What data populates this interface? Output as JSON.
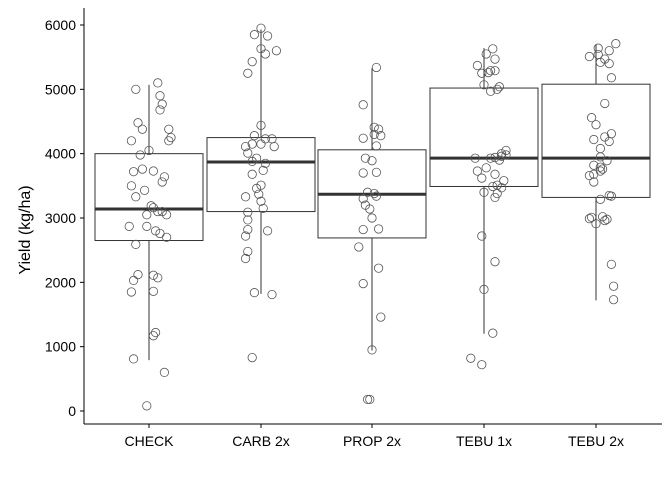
{
  "chart_data": {
    "type": "boxplot",
    "ylabel": "Yield (kg/ha)",
    "xlabel": "",
    "ylim": [
      -200,
      6200
    ],
    "yticks": [
      0,
      1000,
      2000,
      3000,
      4000,
      5000,
      6000
    ],
    "ytick_labels": [
      "0",
      "1000",
      "2000",
      "3000",
      "4000",
      "5000",
      "6000"
    ],
    "grid": false,
    "legend": "none",
    "colors": {
      "box_line": "#333333",
      "median": "#333333",
      "point_stroke": "#555555",
      "axis": "#000000"
    },
    "categories": [
      "CHECK",
      "CARB 2x",
      "PROP 2x",
      "TEBU 1x",
      "TEBU 2x"
    ],
    "boxes": [
      {
        "q1": 2650,
        "median": 3140,
        "q3": 4000,
        "whisker_low": 790,
        "whisker_high": 5070
      },
      {
        "q1": 3100,
        "median": 3870,
        "q3": 4250,
        "whisker_low": 1820,
        "whisker_high": 5930
      },
      {
        "q1": 2690,
        "median": 3370,
        "q3": 4060,
        "whisker_low": 940,
        "whisker_high": 5330
      },
      {
        "q1": 3490,
        "median": 3930,
        "q3": 5020,
        "whisker_low": 1200,
        "whisker_high": 5640
      },
      {
        "q1": 3320,
        "median": 3930,
        "q3": 5080,
        "whisker_low": 1720,
        "whisker_high": 5700
      }
    ],
    "points": [
      [
        {
          "x": -0.12,
          "y": 5000
        },
        {
          "x": 0.08,
          "y": 5100
        },
        {
          "x": 0.1,
          "y": 4900
        },
        {
          "x": 0.12,
          "y": 4770
        },
        {
          "x": 0.1,
          "y": 4680
        },
        {
          "x": -0.1,
          "y": 4480
        },
        {
          "x": -0.06,
          "y": 4380
        },
        {
          "x": 0.18,
          "y": 4380
        },
        {
          "x": 0.2,
          "y": 4250
        },
        {
          "x": 0.18,
          "y": 4200
        },
        {
          "x": -0.16,
          "y": 4200
        },
        {
          "x": 0.0,
          "y": 4050
        },
        {
          "x": -0.08,
          "y": 3980
        },
        {
          "x": -0.06,
          "y": 3760
        },
        {
          "x": 0.04,
          "y": 3730
        },
        {
          "x": -0.14,
          "y": 3720
        },
        {
          "x": 0.14,
          "y": 3640
        },
        {
          "x": 0.12,
          "y": 3560
        },
        {
          "x": -0.16,
          "y": 3500
        },
        {
          "x": -0.04,
          "y": 3430
        },
        {
          "x": -0.12,
          "y": 3330
        },
        {
          "x": 0.02,
          "y": 3190
        },
        {
          "x": 0.04,
          "y": 3160
        },
        {
          "x": 0.08,
          "y": 3100
        },
        {
          "x": 0.12,
          "y": 3100
        },
        {
          "x": -0.02,
          "y": 3050
        },
        {
          "x": 0.16,
          "y": 3050
        },
        {
          "x": -0.18,
          "y": 2870
        },
        {
          "x": -0.02,
          "y": 2870
        },
        {
          "x": 0.06,
          "y": 2800
        },
        {
          "x": 0.1,
          "y": 2760
        },
        {
          "x": 0.16,
          "y": 2700
        },
        {
          "x": -0.12,
          "y": 2590
        },
        {
          "x": -0.1,
          "y": 2120
        },
        {
          "x": 0.04,
          "y": 2110
        },
        {
          "x": 0.08,
          "y": 2070
        },
        {
          "x": -0.14,
          "y": 2030
        },
        {
          "x": 0.04,
          "y": 1860
        },
        {
          "x": -0.16,
          "y": 1850
        },
        {
          "x": 0.06,
          "y": 1220
        },
        {
          "x": 0.04,
          "y": 1170
        },
        {
          "x": -0.14,
          "y": 810
        },
        {
          "x": 0.14,
          "y": 600
        },
        {
          "x": -0.02,
          "y": 80
        }
      ],
      [
        {
          "x": 0.0,
          "y": 5950
        },
        {
          "x": -0.06,
          "y": 5850
        },
        {
          "x": 0.06,
          "y": 5830
        },
        {
          "x": 0.0,
          "y": 5630
        },
        {
          "x": 0.14,
          "y": 5600
        },
        {
          "x": 0.04,
          "y": 5550
        },
        {
          "x": -0.08,
          "y": 5430
        },
        {
          "x": -0.12,
          "y": 5250
        },
        {
          "x": 0.0,
          "y": 4440
        },
        {
          "x": -0.06,
          "y": 4280
        },
        {
          "x": 0.04,
          "y": 4230
        },
        {
          "x": 0.1,
          "y": 4230
        },
        {
          "x": -0.08,
          "y": 4150
        },
        {
          "x": 0.0,
          "y": 4150
        },
        {
          "x": 0.12,
          "y": 4110
        },
        {
          "x": -0.14,
          "y": 4110
        },
        {
          "x": -0.12,
          "y": 4010
        },
        {
          "x": -0.04,
          "y": 3930
        },
        {
          "x": -0.08,
          "y": 3880
        },
        {
          "x": 0.04,
          "y": 3850
        },
        {
          "x": 0.02,
          "y": 3740
        },
        {
          "x": -0.08,
          "y": 3680
        },
        {
          "x": 0.0,
          "y": 3510
        },
        {
          "x": -0.04,
          "y": 3460
        },
        {
          "x": -0.02,
          "y": 3370
        },
        {
          "x": -0.14,
          "y": 3330
        },
        {
          "x": 0.0,
          "y": 3260
        },
        {
          "x": 0.02,
          "y": 3150
        },
        {
          "x": -0.12,
          "y": 3090
        },
        {
          "x": -0.12,
          "y": 2970
        },
        {
          "x": -0.12,
          "y": 2820
        },
        {
          "x": 0.06,
          "y": 2800
        },
        {
          "x": -0.14,
          "y": 2720
        },
        {
          "x": -0.12,
          "y": 2480
        },
        {
          "x": -0.14,
          "y": 2370
        },
        {
          "x": -0.06,
          "y": 1840
        },
        {
          "x": 0.1,
          "y": 1810
        },
        {
          "x": -0.08,
          "y": 830
        }
      ],
      [
        {
          "x": 0.04,
          "y": 5340
        },
        {
          "x": -0.08,
          "y": 4760
        },
        {
          "x": 0.02,
          "y": 4410
        },
        {
          "x": 0.06,
          "y": 4380
        },
        {
          "x": 0.02,
          "y": 4300
        },
        {
          "x": 0.08,
          "y": 4280
        },
        {
          "x": -0.08,
          "y": 4240
        },
        {
          "x": 0.04,
          "y": 4120
        },
        {
          "x": -0.06,
          "y": 3930
        },
        {
          "x": 0.0,
          "y": 3890
        },
        {
          "x": 0.04,
          "y": 3710
        },
        {
          "x": -0.08,
          "y": 3700
        },
        {
          "x": -0.04,
          "y": 3400
        },
        {
          "x": 0.02,
          "y": 3380
        },
        {
          "x": 0.04,
          "y": 3340
        },
        {
          "x": -0.08,
          "y": 3300
        },
        {
          "x": -0.06,
          "y": 3200
        },
        {
          "x": -0.02,
          "y": 3140
        },
        {
          "x": 0.0,
          "y": 3000
        },
        {
          "x": -0.08,
          "y": 2820
        },
        {
          "x": 0.06,
          "y": 2830
        },
        {
          "x": -0.12,
          "y": 2550
        },
        {
          "x": 0.06,
          "y": 2220
        },
        {
          "x": -0.08,
          "y": 1980
        },
        {
          "x": 0.08,
          "y": 1460
        },
        {
          "x": 0.0,
          "y": 950
        },
        {
          "x": -0.04,
          "y": 180
        },
        {
          "x": -0.02,
          "y": 180
        }
      ],
      [
        {
          "x": 0.08,
          "y": 5630
        },
        {
          "x": 0.02,
          "y": 5550
        },
        {
          "x": 0.1,
          "y": 5470
        },
        {
          "x": -0.06,
          "y": 5370
        },
        {
          "x": 0.06,
          "y": 5290
        },
        {
          "x": 0.1,
          "y": 5290
        },
        {
          "x": 0.04,
          "y": 5260
        },
        {
          "x": -0.02,
          "y": 5250
        },
        {
          "x": 0.0,
          "y": 5070
        },
        {
          "x": 0.14,
          "y": 5040
        },
        {
          "x": 0.12,
          "y": 5000
        },
        {
          "x": 0.06,
          "y": 4970
        },
        {
          "x": 0.2,
          "y": 4050
        },
        {
          "x": 0.16,
          "y": 4000
        },
        {
          "x": 0.2,
          "y": 3980
        },
        {
          "x": 0.16,
          "y": 3960
        },
        {
          "x": 0.1,
          "y": 3940
        },
        {
          "x": 0.06,
          "y": 3930
        },
        {
          "x": -0.08,
          "y": 3930
        },
        {
          "x": 0.14,
          "y": 3900
        },
        {
          "x": 0.02,
          "y": 3780
        },
        {
          "x": -0.06,
          "y": 3730
        },
        {
          "x": 0.1,
          "y": 3680
        },
        {
          "x": -0.02,
          "y": 3620
        },
        {
          "x": 0.18,
          "y": 3580
        },
        {
          "x": 0.12,
          "y": 3510
        },
        {
          "x": 0.08,
          "y": 3490
        },
        {
          "x": 0.16,
          "y": 3470
        },
        {
          "x": 0.0,
          "y": 3400
        },
        {
          "x": 0.12,
          "y": 3380
        },
        {
          "x": 0.1,
          "y": 3320
        },
        {
          "x": -0.02,
          "y": 2720
        },
        {
          "x": 0.1,
          "y": 2320
        },
        {
          "x": 0.0,
          "y": 1890
        },
        {
          "x": 0.08,
          "y": 1210
        },
        {
          "x": -0.12,
          "y": 820
        },
        {
          "x": -0.02,
          "y": 720
        }
      ],
      [
        {
          "x": 0.18,
          "y": 5710
        },
        {
          "x": 0.02,
          "y": 5640
        },
        {
          "x": 0.12,
          "y": 5600
        },
        {
          "x": 0.02,
          "y": 5540
        },
        {
          "x": -0.06,
          "y": 5510
        },
        {
          "x": 0.08,
          "y": 5470
        },
        {
          "x": 0.04,
          "y": 5420
        },
        {
          "x": 0.12,
          "y": 5400
        },
        {
          "x": 0.14,
          "y": 5180
        },
        {
          "x": 0.08,
          "y": 4780
        },
        {
          "x": -0.04,
          "y": 4560
        },
        {
          "x": 0.0,
          "y": 4450
        },
        {
          "x": 0.14,
          "y": 4310
        },
        {
          "x": 0.08,
          "y": 4260
        },
        {
          "x": -0.02,
          "y": 4220
        },
        {
          "x": 0.12,
          "y": 4190
        },
        {
          "x": 0.04,
          "y": 4080
        },
        {
          "x": 0.04,
          "y": 3950
        },
        {
          "x": 0.1,
          "y": 3890
        },
        {
          "x": -0.02,
          "y": 3820
        },
        {
          "x": 0.04,
          "y": 3790
        },
        {
          "x": 0.06,
          "y": 3760
        },
        {
          "x": 0.04,
          "y": 3730
        },
        {
          "x": -0.02,
          "y": 3680
        },
        {
          "x": -0.06,
          "y": 3660
        },
        {
          "x": -0.02,
          "y": 3560
        },
        {
          "x": 0.12,
          "y": 3350
        },
        {
          "x": 0.14,
          "y": 3340
        },
        {
          "x": 0.04,
          "y": 3290
        },
        {
          "x": 0.06,
          "y": 3020
        },
        {
          "x": -0.04,
          "y": 3010
        },
        {
          "x": -0.06,
          "y": 2990
        },
        {
          "x": 0.1,
          "y": 2980
        },
        {
          "x": 0.08,
          "y": 2960
        },
        {
          "x": 0.0,
          "y": 2910
        },
        {
          "x": 0.14,
          "y": 2280
        },
        {
          "x": 0.16,
          "y": 1940
        },
        {
          "x": 0.16,
          "y": 1730
        }
      ]
    ]
  }
}
